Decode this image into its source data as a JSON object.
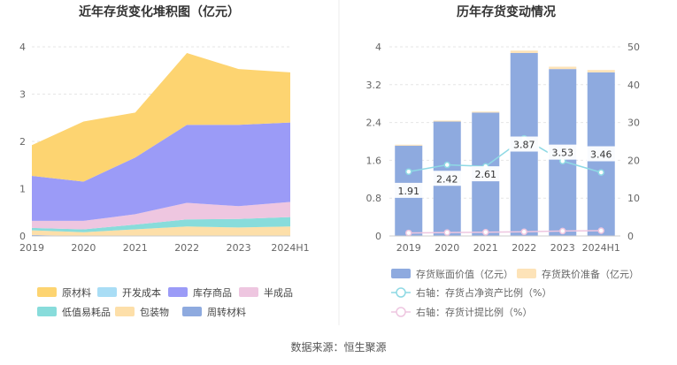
{
  "source": "数据来源：恒生聚源",
  "chart_data": [
    {
      "type": "area",
      "stacked": true,
      "title": "近年存货变化堆积图（亿元）",
      "categories": [
        "2019",
        "2020",
        "2021",
        "2022",
        "2023",
        "2024H1"
      ],
      "ylim": [
        0,
        4
      ],
      "yticks": [
        "0",
        "1",
        "2",
        "3",
        "4"
      ],
      "legend_position": "bottom",
      "series": [
        {
          "name": "周转材料",
          "color": "#8EAADF",
          "values": [
            0.02,
            0.0,
            0.0,
            0.0,
            0.0,
            0.0
          ]
        },
        {
          "name": "包装物",
          "color": "#FDDFA9",
          "values": [
            0.1,
            0.08,
            0.14,
            0.2,
            0.18,
            0.2
          ]
        },
        {
          "name": "低值易耗品",
          "color": "#88DCDB",
          "values": [
            0.05,
            0.06,
            0.1,
            0.15,
            0.18,
            0.2
          ]
        },
        {
          "name": "半成品",
          "color": "#EEC6E0",
          "values": [
            0.15,
            0.18,
            0.22,
            0.35,
            0.27,
            0.32
          ]
        },
        {
          "name": "库存商品",
          "color": "#9B9BF7",
          "values": [
            0.95,
            0.83,
            1.2,
            1.65,
            1.72,
            1.68
          ]
        },
        {
          "name": "开发成本",
          "color": "#A9DDF5",
          "values": [
            0.0,
            0.0,
            0.0,
            0.0,
            0.0,
            0.0
          ]
        },
        {
          "name": "原材料",
          "color": "#FDD471",
          "values": [
            0.65,
            1.27,
            0.95,
            1.52,
            1.18,
            1.06
          ]
        }
      ],
      "legend_order": [
        "原材料",
        "开发成本",
        "库存商品",
        "半成品",
        "低值易耗品",
        "包装物",
        "周转材料"
      ]
    },
    {
      "type": "bar",
      "title": "历年存货变动情况",
      "categories": [
        "2019",
        "2020",
        "2021",
        "2022",
        "2023",
        "2024H1"
      ],
      "ylim": [
        0,
        4
      ],
      "yticks_left": [
        "0",
        "0.8",
        "1.6",
        "2.4",
        "3.2",
        "4"
      ],
      "y2lim": [
        0,
        50
      ],
      "yticks_right": [
        "0",
        "10",
        "20",
        "30",
        "40",
        "50"
      ],
      "legend_position": "bottom",
      "series": [
        {
          "name": "存货账面价值（亿元）",
          "kind": "bar",
          "axis": "left",
          "color": "#8EAADF",
          "values": [
            1.91,
            2.42,
            2.61,
            3.87,
            3.53,
            3.46
          ],
          "labels": [
            "1.91",
            "2.42",
            "2.61",
            "3.87",
            "3.53",
            "3.46"
          ]
        },
        {
          "name": "存货跌价准备（亿元）",
          "kind": "bar",
          "axis": "left",
          "color": "#FDE3B8",
          "values": [
            0.02,
            0.02,
            0.02,
            0.05,
            0.05,
            0.05
          ]
        },
        {
          "name": "右轴：存货占净资产比例（%）",
          "kind": "line",
          "axis": "right",
          "color": "#8ED9E4",
          "values": [
            17.0,
            18.8,
            18.4,
            25.8,
            19.8,
            16.8
          ]
        },
        {
          "name": "右轴：存货计提比例（%）",
          "kind": "line",
          "axis": "right",
          "color": "#EEC6E0",
          "values": [
            0.8,
            0.9,
            1.0,
            1.1,
            1.3,
            1.4
          ]
        }
      ]
    }
  ]
}
